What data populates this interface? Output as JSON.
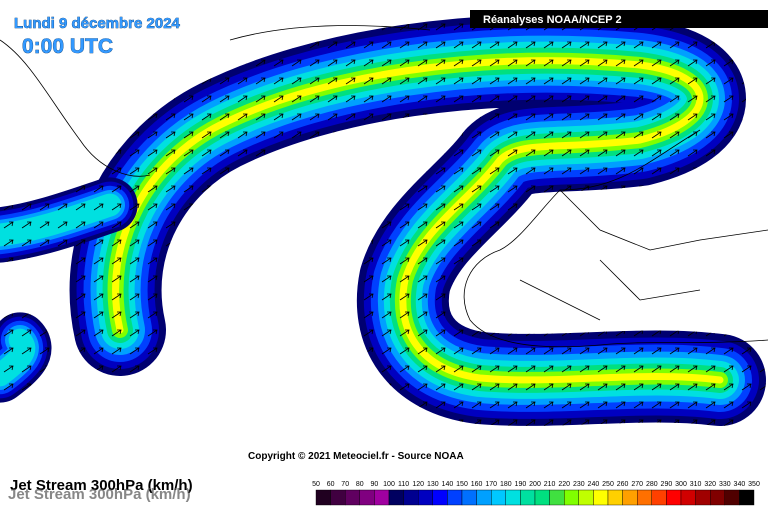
{
  "header": {
    "date": "Lundi 9 décembre 2024",
    "time": "0:00 UTC",
    "source_box": "Réanalyses NOAA/NCEP 2"
  },
  "copyright": "Copyright © 2021 Meteociel.fr - Source NOAA",
  "map_title": "Jet Stream 300hPa (km/h)",
  "legend": {
    "stops": [
      50,
      60,
      70,
      80,
      90,
      100,
      110,
      120,
      130,
      140,
      150,
      160,
      170,
      180,
      190,
      200,
      210,
      220,
      230,
      240,
      250,
      260,
      270,
      280,
      290,
      300,
      310,
      320,
      330,
      340,
      350
    ],
    "colors": [
      "#200020",
      "#400040",
      "#600060",
      "#800080",
      "#a000a0",
      "#000060",
      "#000090",
      "#0000c0",
      "#0000ff",
      "#0040ff",
      "#0070ff",
      "#00a0ff",
      "#00c8ff",
      "#00e0e0",
      "#00e0a0",
      "#00e080",
      "#40e040",
      "#80ff00",
      "#c0ff00",
      "#ffff00",
      "#ffd000",
      "#ffa000",
      "#ff7000",
      "#ff4000",
      "#ff0000",
      "#d00000",
      "#a00000",
      "#800000",
      "#500000",
      "#000000"
    ]
  }
}
